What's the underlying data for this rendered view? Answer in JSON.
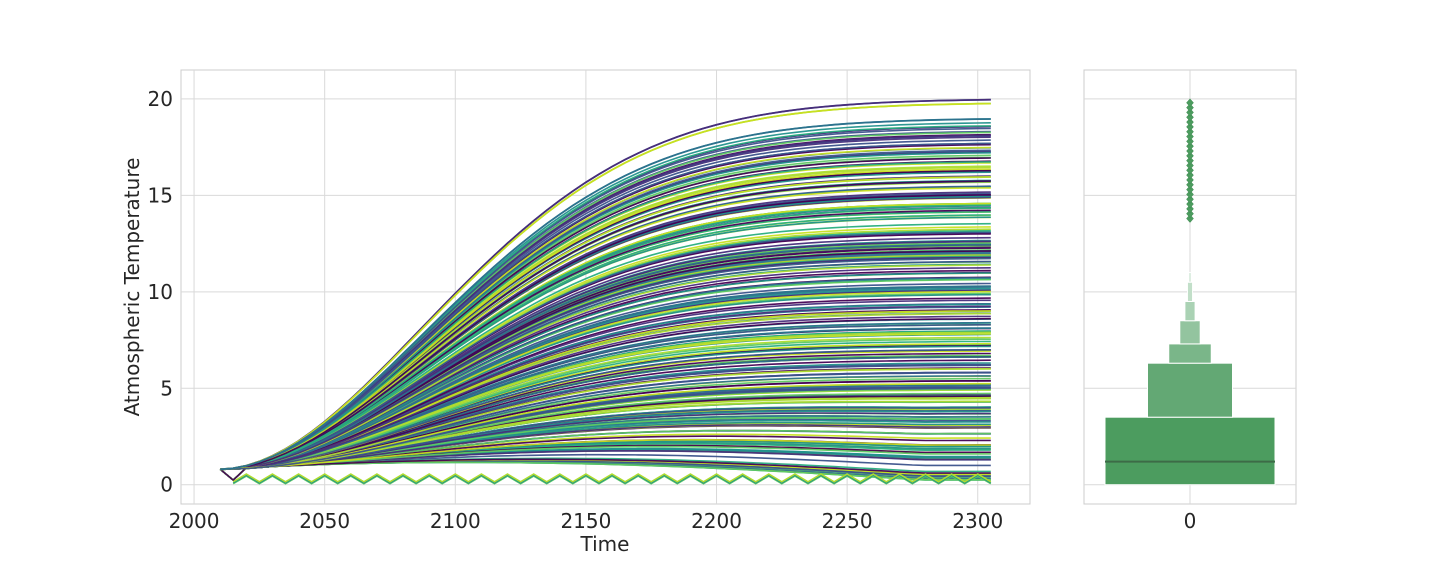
{
  "chart_data": [
    {
      "type": "line",
      "xlabel": "Time",
      "ylabel": "Atmospheric Temperature",
      "xlim": [
        1995,
        2320
      ],
      "ylim": [
        -1,
        21.5
      ],
      "xticks": [
        2000,
        2050,
        2100,
        2150,
        2200,
        2250,
        2300
      ],
      "xtick_labels": [
        "2000",
        "2050",
        "2100",
        "2150",
        "2200",
        "2250",
        "2300"
      ],
      "yticks": [
        0,
        5,
        10,
        15,
        20
      ],
      "ytick_labels": [
        "0",
        "5",
        "10",
        "15",
        "20"
      ],
      "grid": true,
      "x_range": [
        2010,
        2305
      ],
      "start_value": 0.8,
      "palette": [
        "#440154",
        "#472d7b",
        "#3b528b",
        "#2c728e",
        "#21918c",
        "#28ae80",
        "#5ec962",
        "#addc30",
        "#c8e020"
      ],
      "series_summary": {
        "count": "hundreds of model runs",
        "max_final": 20.0,
        "min_final": 0.2,
        "peak_year_low_runs": 2175
      },
      "series": [
        {
          "values_2305": 20.0
        },
        {
          "values_2305": 19.8
        },
        {
          "values_2305": 19.0
        },
        {
          "values_2305": 18.8
        },
        {
          "values_2305": 18.3
        },
        {
          "values_2305": 17.9
        },
        {
          "values_2305": 17.5
        },
        {
          "values_2305": 17.0
        },
        {
          "values_2305": 16.4
        },
        {
          "values_2305": 15.8
        },
        {
          "values_2305": 15.2
        },
        {
          "values_2305": 14.6
        },
        {
          "values_2305": 14.0
        },
        {
          "values_2305": 13.2
        },
        {
          "values_2305": 12.5
        },
        {
          "values_2305": 11.8
        },
        {
          "values_2305": 11.0
        },
        {
          "values_2305": 10.2
        },
        {
          "values_2305": 9.4
        },
        {
          "values_2305": 8.6
        },
        {
          "values_2305": 7.8
        },
        {
          "values_2305": 7.0
        },
        {
          "values_2305": 6.2
        },
        {
          "values_2305": 5.4
        },
        {
          "values_2305": 4.6
        },
        {
          "values_2305": 3.8
        },
        {
          "values_2305": 3.0
        },
        {
          "values_2305": 2.3
        },
        {
          "values_2305": 1.6
        },
        {
          "values_2305": 1.0
        },
        {
          "values_2305": 0.6
        },
        {
          "values_2305": 0.3
        }
      ]
    },
    {
      "type": "boxen",
      "xtick_labels": [
        "0"
      ],
      "ylim": [
        -1,
        21.5
      ],
      "color": "#4c9c5f",
      "median": 1.2,
      "boxes": [
        {
          "low": 0.0,
          "high": 3.5,
          "half_width": 0.5
        },
        {
          "low": 3.5,
          "high": 6.3,
          "half_width": 0.25
        },
        {
          "low": 6.3,
          "high": 7.3,
          "half_width": 0.125
        },
        {
          "low": 7.3,
          "high": 8.5,
          "half_width": 0.06
        },
        {
          "low": 8.5,
          "high": 9.5,
          "half_width": 0.03
        },
        {
          "low": 9.5,
          "high": 10.5,
          "half_width": 0.015
        },
        {
          "low": 10.5,
          "high": 11.0,
          "half_width": 0.008
        }
      ],
      "outliers_range": [
        13.8,
        20.0
      ]
    }
  ]
}
